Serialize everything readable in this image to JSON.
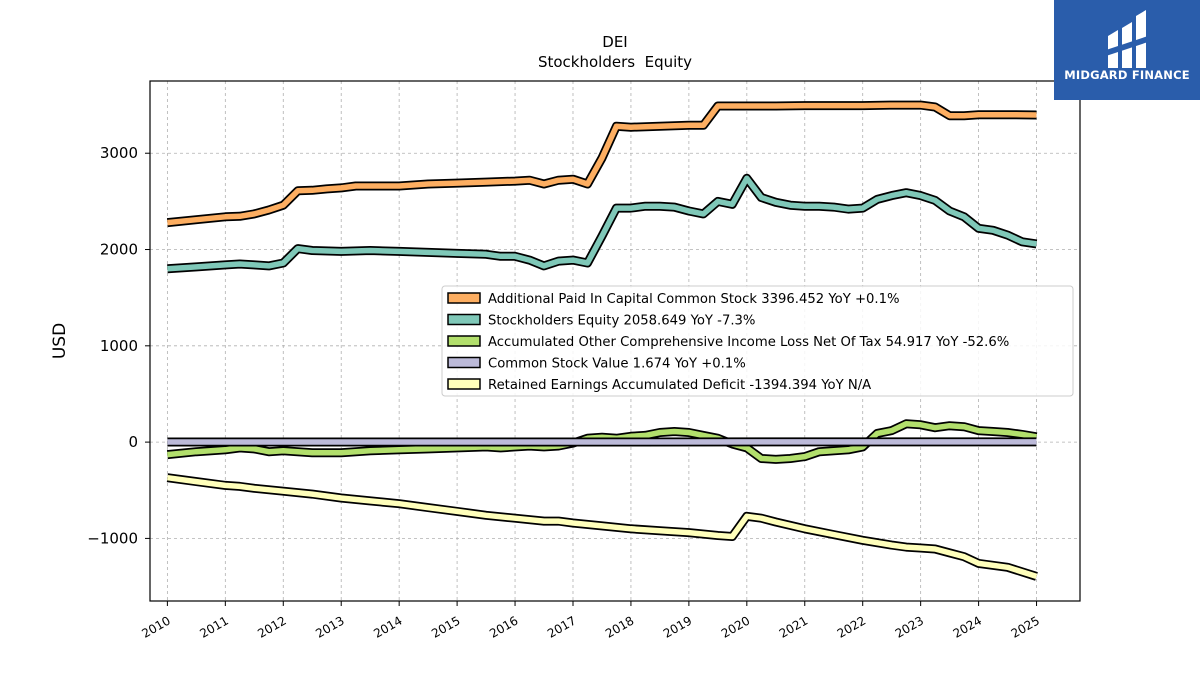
{
  "brand": {
    "name": "MIDGARD FINANCE",
    "color": "#2a5dab"
  },
  "chart_data": {
    "type": "line",
    "title": "DEI",
    "subtitle": "Stockholders  Equity",
    "xlabel": "",
    "ylabel": "USD",
    "xlim": [
      2009.7,
      2025.75
    ],
    "ylim": [
      -1650,
      3750
    ],
    "yticks": [
      -1000,
      0,
      1000,
      2000,
      3000
    ],
    "xticks": [
      "2010",
      "2011",
      "2012",
      "2013",
      "2014",
      "2015",
      "2016",
      "2017",
      "2018",
      "2019",
      "2020",
      "2021",
      "2022",
      "2023",
      "2024",
      "2025"
    ],
    "grid": true,
    "legend_position": "center-right",
    "series": [
      {
        "name": "Additional Paid In Capital Common Stock  3396.452 YoY +0.1%",
        "color": "#fdae61",
        "x": [
          2010.0,
          2010.5,
          2011.0,
          2011.25,
          2011.5,
          2011.75,
          2012.0,
          2012.25,
          2012.5,
          2012.75,
          2013.0,
          2013.25,
          2013.5,
          2014.0,
          2014.5,
          2015.0,
          2015.5,
          2016.0,
          2016.25,
          2016.5,
          2016.75,
          2017.0,
          2017.25,
          2017.5,
          2017.75,
          2018.0,
          2018.5,
          2019.0,
          2019.25,
          2019.5,
          2019.75,
          2020.0,
          2020.5,
          2021.0,
          2021.5,
          2022.0,
          2022.5,
          2023.0,
          2023.25,
          2023.5,
          2023.75,
          2024.0,
          2024.5,
          2025.0
        ],
        "values": [
          2280,
          2310,
          2340,
          2345,
          2370,
          2410,
          2460,
          2610,
          2615,
          2630,
          2640,
          2660,
          2660,
          2660,
          2680,
          2690,
          2700,
          2710,
          2720,
          2680,
          2720,
          2730,
          2680,
          2950,
          3280,
          3270,
          3280,
          3290,
          3290,
          3490,
          3490,
          3490,
          3490,
          3495,
          3495,
          3495,
          3500,
          3500,
          3480,
          3390,
          3390,
          3400,
          3400,
          3396.452
        ]
      },
      {
        "name": "Stockholders Equity  2058.649 YoY -7.3%",
        "color": "#7fc8b8",
        "x": [
          2010.0,
          2010.5,
          2011.0,
          2011.25,
          2011.5,
          2011.75,
          2012.0,
          2012.25,
          2012.5,
          2013.0,
          2013.5,
          2014.0,
          2014.5,
          2015.0,
          2015.5,
          2015.75,
          2016.0,
          2016.25,
          2016.5,
          2016.75,
          2017.0,
          2017.25,
          2017.5,
          2017.75,
          2018.0,
          2018.25,
          2018.5,
          2018.75,
          2019.0,
          2019.25,
          2019.5,
          2019.75,
          2020.0,
          2020.25,
          2020.5,
          2020.75,
          2021.0,
          2021.25,
          2021.5,
          2021.75,
          2022.0,
          2022.25,
          2022.5,
          2022.75,
          2023.0,
          2023.25,
          2023.5,
          2023.75,
          2024.0,
          2024.25,
          2024.5,
          2024.75,
          2025.0
        ],
        "values": [
          1800,
          1820,
          1840,
          1850,
          1840,
          1830,
          1860,
          2010,
          1990,
          1980,
          1990,
          1980,
          1970,
          1960,
          1950,
          1930,
          1930,
          1890,
          1830,
          1880,
          1890,
          1860,
          2140,
          2430,
          2430,
          2450,
          2450,
          2440,
          2400,
          2370,
          2500,
          2470,
          2740,
          2540,
          2490,
          2460,
          2450,
          2450,
          2440,
          2420,
          2430,
          2520,
          2560,
          2590,
          2560,
          2510,
          2400,
          2340,
          2220,
          2200,
          2150,
          2080,
          2058.649
        ]
      },
      {
        "name": "Accumulated Other Comprehensive Income Loss Net Of Tax  54.917 YoY -52.6%",
        "color": "#b2df6c",
        "x": [
          2010.0,
          2010.5,
          2011.0,
          2011.25,
          2011.5,
          2011.75,
          2012.0,
          2012.25,
          2012.5,
          2013.0,
          2013.5,
          2014.0,
          2014.5,
          2015.0,
          2015.5,
          2015.75,
          2016.0,
          2016.25,
          2016.5,
          2016.75,
          2017.0,
          2017.25,
          2017.5,
          2017.75,
          2018.0,
          2018.25,
          2018.5,
          2018.75,
          2019.0,
          2019.25,
          2019.5,
          2019.75,
          2020.0,
          2020.25,
          2020.5,
          2020.75,
          2021.0,
          2021.25,
          2021.5,
          2021.75,
          2022.0,
          2022.25,
          2022.5,
          2022.75,
          2023.0,
          2023.25,
          2023.5,
          2023.75,
          2024.0,
          2024.25,
          2024.5,
          2024.75,
          2025.0
        ],
        "values": [
          -130,
          -100,
          -80,
          -60,
          -70,
          -100,
          -90,
          -100,
          -110,
          -110,
          -90,
          -80,
          -70,
          -60,
          -50,
          -60,
          -50,
          -40,
          -50,
          -40,
          -10,
          40,
          50,
          40,
          60,
          70,
          100,
          110,
          100,
          70,
          40,
          -20,
          -60,
          -170,
          -180,
          -170,
          -150,
          -100,
          -90,
          -80,
          -50,
          90,
          120,
          190,
          180,
          150,
          170,
          160,
          120,
          110,
          100,
          80,
          54.917
        ]
      },
      {
        "name": "Common Stock Value  1.674 YoY +0.1%",
        "color": "#bcbad9",
        "x": [
          2010.0,
          2025.0
        ],
        "values": [
          1.67,
          1.674
        ]
      },
      {
        "name": "Retained Earnings Accumulated Deficit  -1394.394 YoY N/A",
        "color": "#ffffbb",
        "x": [
          2010.0,
          2010.5,
          2011.0,
          2011.25,
          2011.5,
          2012.0,
          2012.5,
          2013.0,
          2013.5,
          2014.0,
          2014.5,
          2015.0,
          2015.5,
          2016.0,
          2016.5,
          2016.75,
          2017.0,
          2017.5,
          2018.0,
          2018.5,
          2019.0,
          2019.5,
          2019.75,
          2020.0,
          2020.25,
          2020.5,
          2021.0,
          2021.5,
          2022.0,
          2022.5,
          2022.75,
          2023.0,
          2023.25,
          2023.5,
          2023.75,
          2024.0,
          2024.5,
          2025.0
        ],
        "values": [
          -370,
          -410,
          -450,
          -460,
          -480,
          -510,
          -540,
          -580,
          -610,
          -640,
          -680,
          -720,
          -760,
          -790,
          -820,
          -820,
          -840,
          -870,
          -900,
          -920,
          -940,
          -970,
          -980,
          -770,
          -790,
          -830,
          -900,
          -960,
          -1020,
          -1070,
          -1090,
          -1100,
          -1110,
          -1150,
          -1190,
          -1260,
          -1300,
          -1394.394
        ]
      }
    ]
  }
}
